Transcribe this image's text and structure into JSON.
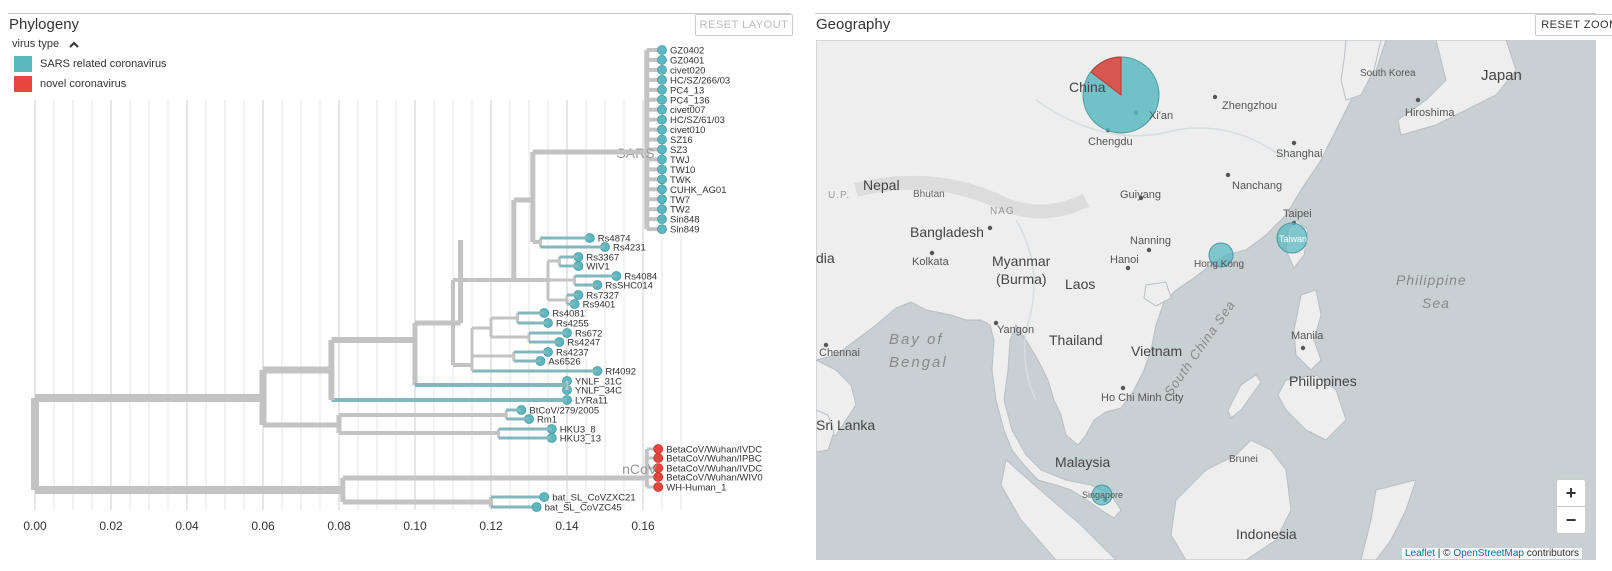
{
  "phylogeny": {
    "title": "Phylogeny",
    "reset_layout": "RESET LAYOUT",
    "legend_title": "virus type",
    "legend": [
      {
        "label": "SARS related coronavirus",
        "color": "#5bb8c1"
      },
      {
        "label": "novel coronavirus",
        "color": "#e8453c"
      }
    ],
    "clade_labels": [
      "SARS",
      "nCoV"
    ],
    "axis_ticks": [
      "0.00",
      "0.02",
      "0.04",
      "0.06",
      "0.08",
      "0.10",
      "0.12",
      "0.14",
      "0.16"
    ],
    "tips": {
      "sars": [
        "GZ0402",
        "GZ0401",
        "civet020",
        "HC/SZ/266/03",
        "PC4_13",
        "PC4_136",
        "civet007",
        "HC/SZ/61/03",
        "civet010",
        "SZ16",
        "SZ3",
        "TWJ",
        "TW10",
        "TWK",
        "CUHK_AG01",
        "TW7",
        "TW2",
        "Sin848",
        "Sin849"
      ],
      "bat": [
        {
          "name": "Rs4874",
          "div": 0.146
        },
        {
          "name": "Rs4231",
          "div": 0.15
        },
        {
          "name": "Rs3367",
          "div": 0.143
        },
        {
          "name": "WIV1",
          "div": 0.143
        },
        {
          "name": "Rs4084",
          "div": 0.153
        },
        {
          "name": "RsSHC014",
          "div": 0.148
        },
        {
          "name": "Rs7327",
          "div": 0.143
        },
        {
          "name": "Rs9401",
          "div": 0.142
        },
        {
          "name": "Rs4081",
          "div": 0.134
        },
        {
          "name": "Rs4255",
          "div": 0.135
        },
        {
          "name": "Rs672",
          "div": 0.14
        },
        {
          "name": "Rs4247",
          "div": 0.138
        },
        {
          "name": "Rs4237",
          "div": 0.135
        },
        {
          "name": "As6526",
          "div": 0.133
        },
        {
          "name": "Rf4092",
          "div": 0.148
        },
        {
          "name": "YNLF_31C",
          "div": 0.14
        },
        {
          "name": "YNLF_34C",
          "div": 0.14
        },
        {
          "name": "LYRa11",
          "div": 0.14
        },
        {
          "name": "BtCoV/279/2005",
          "div": 0.128
        },
        {
          "name": "Rm1",
          "div": 0.13
        },
        {
          "name": "HKU3_8",
          "div": 0.136
        },
        {
          "name": "HKU3_13",
          "div": 0.136
        }
      ],
      "ncov": [
        "BetaCoV/Wuhan/IVDC",
        "BetaCoV/Wuhan/IPBC",
        "BetaCoV/Wuhan/IVDC",
        "BetaCoV/Wuhan/WIV0",
        "WH-Human_1"
      ],
      "batsl": [
        {
          "name": "bat_SL_CoVZXC21",
          "div": 0.134
        },
        {
          "name": "bat_SL_CoVZC45",
          "div": 0.132
        }
      ]
    }
  },
  "geography": {
    "title": "Geography",
    "reset_zoom": "RESET ZOOM",
    "zoom_in": "+",
    "zoom_out": "−",
    "attribution_leaflet": "Leaflet",
    "attribution_sep": " | © ",
    "attribution_osm": "OpenStreetMap",
    "attribution_rest": " contributors",
    "places": [
      {
        "key": "south_korea",
        "label": "South Korea"
      },
      {
        "key": "japan",
        "label": "Japan"
      },
      {
        "key": "china",
        "label": "China"
      },
      {
        "key": "zhengzhou",
        "label": "Zhengzhou"
      },
      {
        "key": "hiroshima",
        "label": "Hiroshima"
      },
      {
        "key": "xian",
        "label": "Xi'an"
      },
      {
        "key": "chengdu",
        "label": "Chengdu"
      },
      {
        "key": "shanghai",
        "label": "Shanghai"
      },
      {
        "key": "nepal",
        "label": "Nepal"
      },
      {
        "key": "up",
        "label": "U.P."
      },
      {
        "key": "bhutan",
        "label": "Bhutan"
      },
      {
        "key": "guiyang",
        "label": "Guiyang"
      },
      {
        "key": "nanchang",
        "label": "Nanchang"
      },
      {
        "key": "nag",
        "label": "NAG"
      },
      {
        "key": "taipei",
        "label": "Taipei"
      },
      {
        "key": "bangladesh",
        "label": "Bangladesh"
      },
      {
        "key": "nanning",
        "label": "Nanning"
      },
      {
        "key": "taiwan",
        "label": "Taiwan"
      },
      {
        "key": "dia",
        "label": "dia"
      },
      {
        "key": "kolkata",
        "label": "Kolkata"
      },
      {
        "key": "myanmar",
        "label": "Myanmar"
      },
      {
        "key": "burma",
        "label": "(Burma)"
      },
      {
        "key": "hanoi",
        "label": "Hanoi"
      },
      {
        "key": "hongkong",
        "label": "Hong Kong"
      },
      {
        "key": "laos",
        "label": "Laos"
      },
      {
        "key": "philippine_sea_1",
        "label": "Philippine"
      },
      {
        "key": "philippine_sea_2",
        "label": "Sea"
      },
      {
        "key": "yangon",
        "label": "Yangon"
      },
      {
        "key": "bay_1",
        "label": "Bay of"
      },
      {
        "key": "bay_2",
        "label": "Bengal"
      },
      {
        "key": "thailand",
        "label": "Thailand"
      },
      {
        "key": "manila",
        "label": "Manila"
      },
      {
        "key": "chennai",
        "label": "Chennai"
      },
      {
        "key": "vietnam",
        "label": "Vietnam"
      },
      {
        "key": "philippines",
        "label": "Philippines"
      },
      {
        "key": "hcmc",
        "label": "Ho Chi Minh City"
      },
      {
        "key": "scs",
        "label": "South China Sea"
      },
      {
        "key": "srilanka",
        "label": "Sri Lanka"
      },
      {
        "key": "brunei",
        "label": "Brunei"
      },
      {
        "key": "malaysia",
        "label": "Malaysia"
      },
      {
        "key": "singapore",
        "label": "Singapore"
      },
      {
        "key": "indonesia",
        "label": "Indonesia"
      }
    ]
  }
}
